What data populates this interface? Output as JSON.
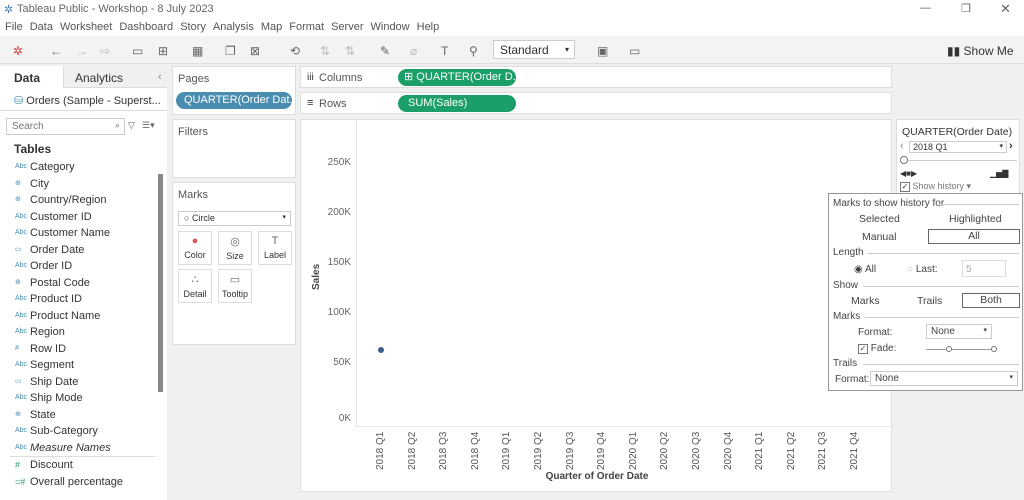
{
  "window": {
    "title": "Tableau Public - Workshop - 8 July 2023"
  },
  "menu": [
    "File",
    "Data",
    "Worksheet",
    "Dashboard",
    "Story",
    "Analysis",
    "Map",
    "Format",
    "Server",
    "Window",
    "Help"
  ],
  "toolbar": {
    "show_me": "Show Me",
    "standard": "Standard"
  },
  "sidebar": {
    "tabs": [
      "Data",
      "Analytics"
    ],
    "datasource": "Orders (Sample - Superst...",
    "search_placeholder": "Search",
    "tables_heading": "Tables",
    "dimensions": [
      {
        "icon": "Abc",
        "label": "Category"
      },
      {
        "icon": "globe",
        "label": "City"
      },
      {
        "icon": "globe",
        "label": "Country/Region"
      },
      {
        "icon": "Abc",
        "label": "Customer ID"
      },
      {
        "icon": "Abc",
        "label": "Customer Name"
      },
      {
        "icon": "calendar",
        "label": "Order Date"
      },
      {
        "icon": "Abc",
        "label": "Order ID"
      },
      {
        "icon": "globe",
        "label": "Postal Code"
      },
      {
        "icon": "Abc",
        "label": "Product ID"
      },
      {
        "icon": "Abc",
        "label": "Product Name"
      },
      {
        "icon": "Abc",
        "label": "Region"
      },
      {
        "icon": "#",
        "label": "Row ID"
      },
      {
        "icon": "Abc",
        "label": "Segment"
      },
      {
        "icon": "calendar",
        "label": "Ship Date"
      },
      {
        "icon": "Abc",
        "label": "Ship Mode"
      },
      {
        "icon": "globe",
        "label": "State"
      },
      {
        "icon": "Abc",
        "label": "Sub-Category"
      },
      {
        "icon": "Abc",
        "label": "Measure Names"
      }
    ],
    "measures": [
      {
        "icon": "#",
        "label": "Discount"
      },
      {
        "icon": "calc",
        "label": "Overall percentage"
      }
    ]
  },
  "pages": {
    "title": "Pages",
    "pill": "QUARTER(Order Dat.."
  },
  "filters": {
    "title": "Filters"
  },
  "marks": {
    "title": "Marks",
    "type": "Circle",
    "buttons": [
      "Color",
      "Size",
      "Label",
      "Detail",
      "Tooltip"
    ]
  },
  "shelves": {
    "columns_label": "Columns",
    "columns_pill": "QUARTER(Order D..",
    "rows_label": "Rows",
    "rows_pill": "SUM(Sales)"
  },
  "page_control": {
    "title": "QUARTER(Order Date)",
    "value": "2018 Q1",
    "show_history": "Show history",
    "show_history_checked": true
  },
  "history_popup": {
    "heading": "Marks to show history for",
    "selected": "Selected",
    "highlighted": "Highlighted",
    "manual": "Manual",
    "all": "All",
    "length": "Length",
    "len_all": "All",
    "len_last": "Last:",
    "last_value": "5",
    "show": "Show",
    "show_marks": "Marks",
    "show_trails": "Trails",
    "show_both": "Both",
    "marks": "Marks",
    "format_label": "Format:",
    "marks_format": "None",
    "fade": "Fade:",
    "fade_checked": true,
    "trails": "Trails",
    "trails_format": "None"
  },
  "chart_data": {
    "type": "scatter",
    "xlabel": "Quarter of Order Date",
    "ylabel": "Sales",
    "categories": [
      "2018 Q1",
      "2018 Q2",
      "2018 Q3",
      "2018 Q4",
      "2019 Q1",
      "2019 Q2",
      "2019 Q3",
      "2019 Q4",
      "2020 Q1",
      "2020 Q2",
      "2020 Q3",
      "2020 Q4",
      "2021 Q1",
      "2021 Q2",
      "2021 Q3",
      "2021 Q4"
    ],
    "y_ticks": [
      "0K",
      "50K",
      "100K",
      "150K",
      "200K",
      "250K"
    ],
    "ylim": [
      0,
      280000
    ],
    "points": [
      {
        "x": "2018 Q1",
        "y": 74000
      }
    ],
    "mark_color": "#3c5d8c",
    "grid": false
  }
}
